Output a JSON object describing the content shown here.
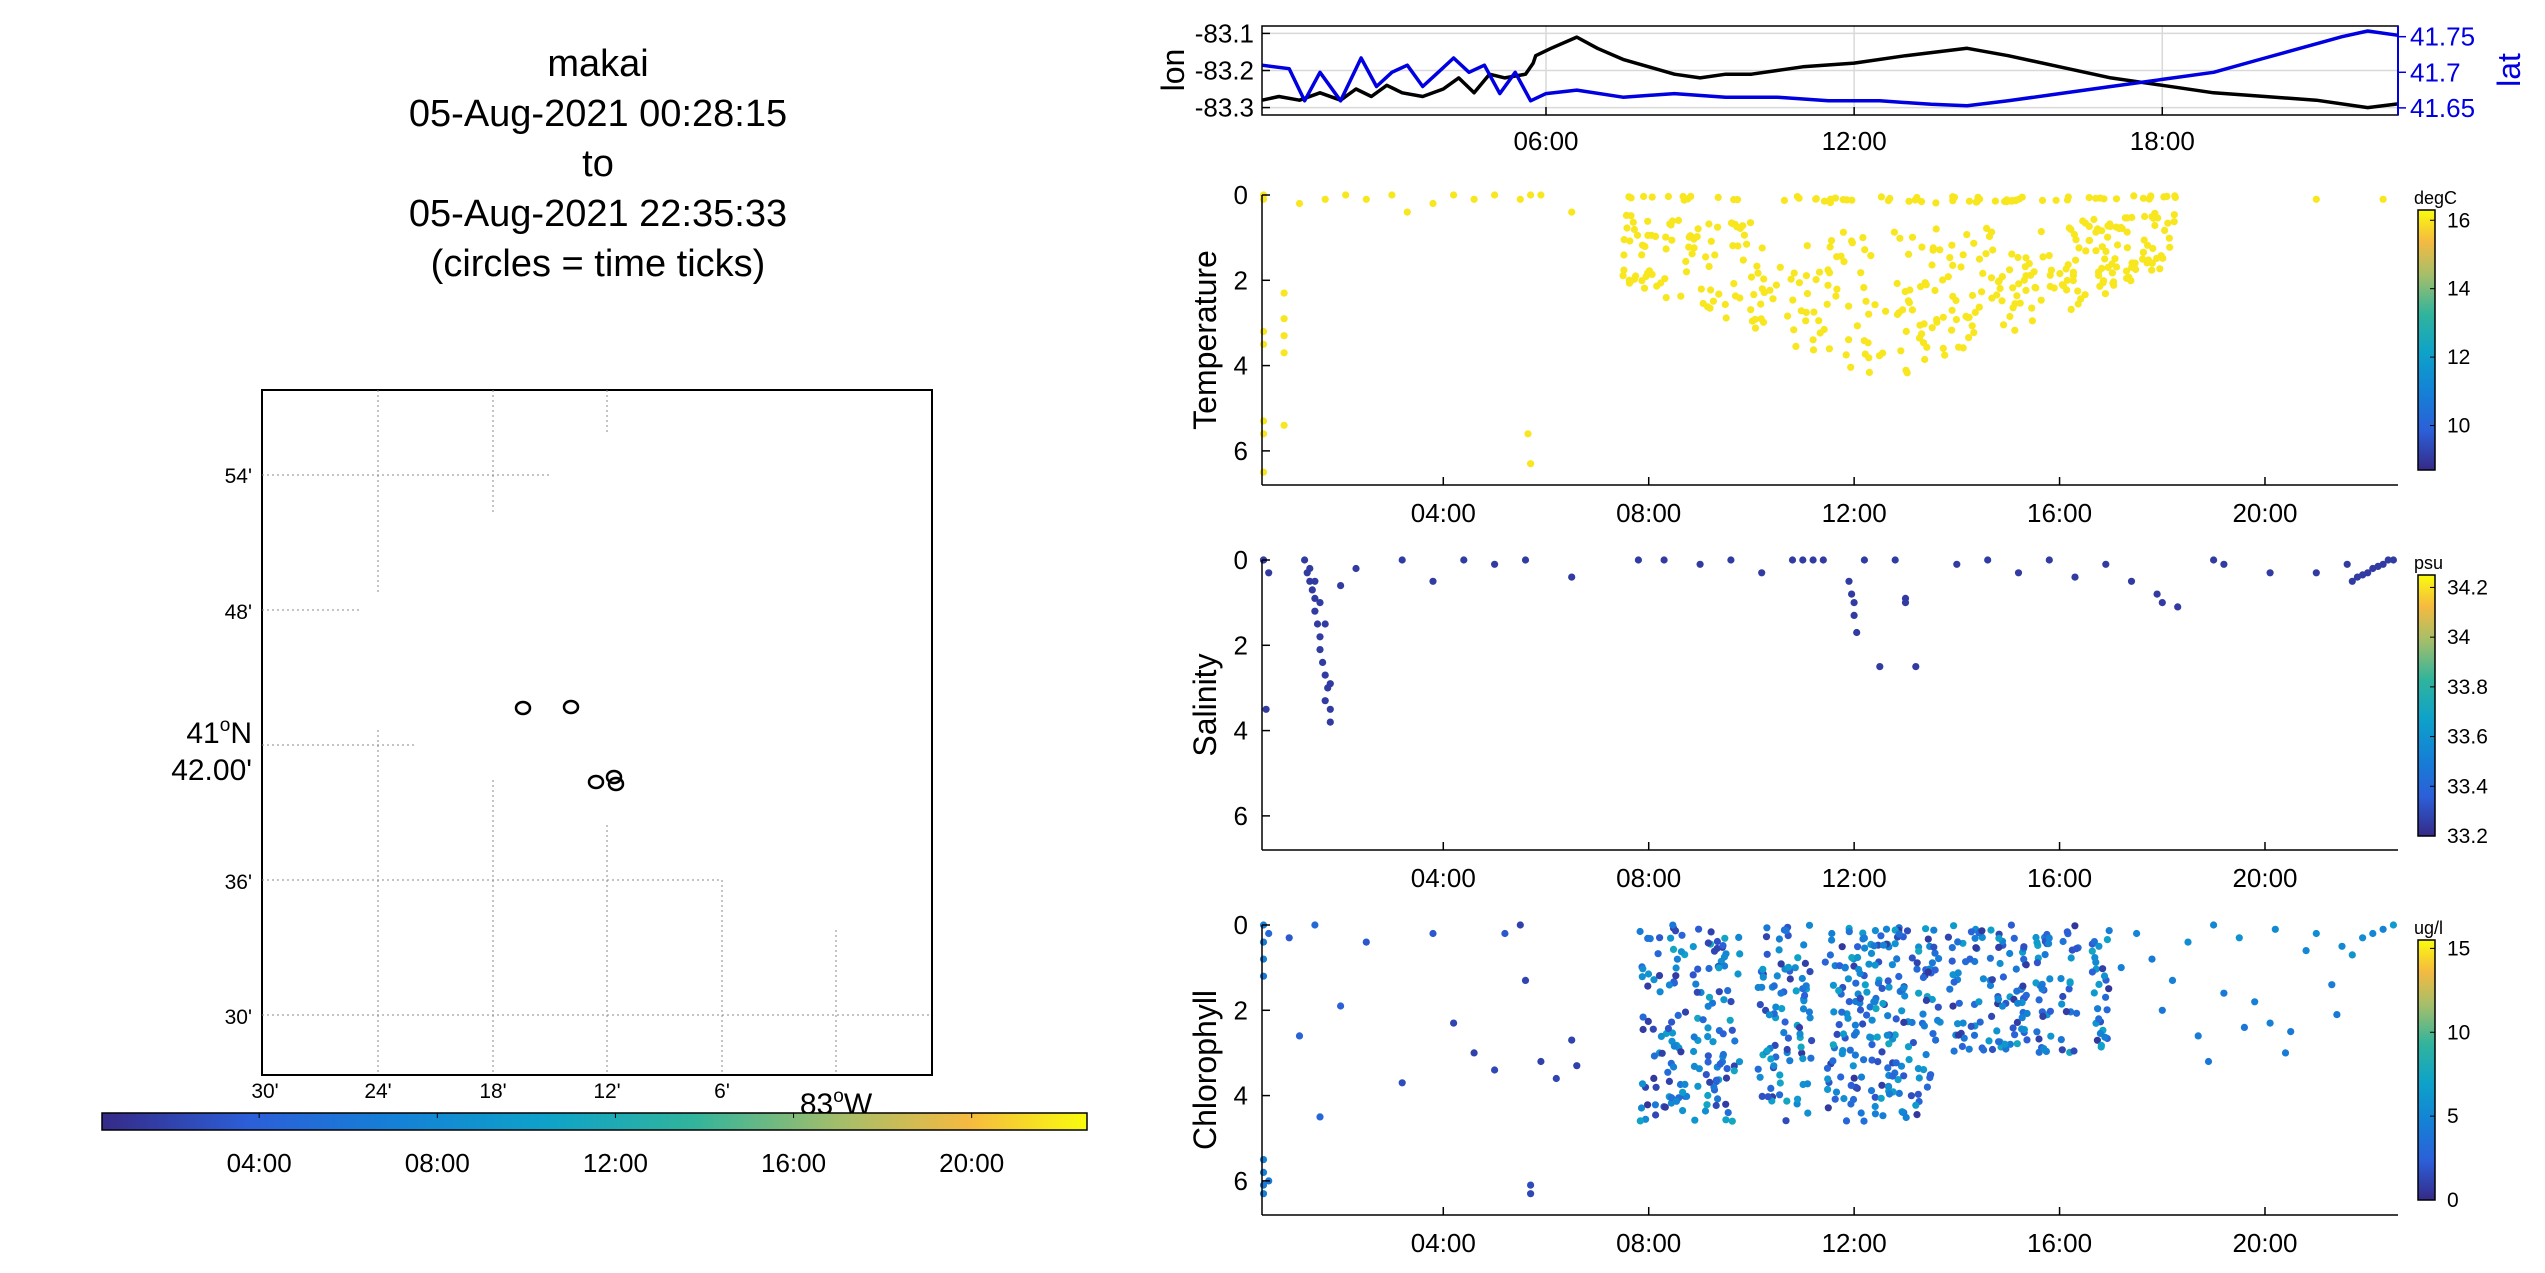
{
  "title": {
    "lines": [
      "makai",
      "05-Aug-2021 00:28:15",
      "to",
      "05-Aug-2021 22:35:33",
      "(circles = time ticks)"
    ]
  },
  "map": {
    "lat_ticks": [
      "54'",
      "48'",
      "42.00'",
      "36'",
      "30'"
    ],
    "lat_degree_label": "41",
    "lat_degree_suffix": "N",
    "lon_ticks": [
      "30'",
      "24'",
      "18'",
      "12'",
      "6'"
    ],
    "lon_degree_label": "83",
    "lon_degree_suffix": "W",
    "circle_marker_style": "black-ring",
    "time_colorbar": {
      "colormap": "parula",
      "ticks": [
        "04:00",
        "08:00",
        "12:00",
        "16:00",
        "20:00"
      ],
      "hours": [
        4,
        8,
        12,
        16,
        20
      ],
      "range_hours": [
        0.47,
        22.59
      ]
    }
  },
  "chart_data": [
    {
      "type": "line",
      "panel": "position",
      "x_ticks": [
        "06:00",
        "12:00",
        "18:00"
      ],
      "x_tick_hours": [
        6,
        12,
        18
      ],
      "xlim_hours": [
        0.47,
        22.59
      ],
      "ylabel": "lon",
      "ylim": [
        -83.32,
        -83.08
      ],
      "y_ticks": [
        "-83.1",
        "-83.2",
        "-83.3"
      ],
      "y_tick_values": [
        -83.1,
        -83.2,
        -83.3
      ],
      "y2label": "lat",
      "y2lim": [
        41.64,
        41.765
      ],
      "y2_ticks": [
        "41.75",
        "41.7",
        "41.65"
      ],
      "y2_tick_values": [
        41.75,
        41.7,
        41.65
      ],
      "grid": true,
      "series": [
        {
          "name": "lon",
          "color": "#000000",
          "axis": "left",
          "x_hours": [
            0.47,
            0.8,
            1.2,
            1.6,
            2.0,
            2.3,
            2.6,
            2.9,
            3.2,
            3.6,
            4.0,
            4.3,
            4.6,
            4.9,
            5.2,
            5.6,
            5.75,
            5.8,
            6.1,
            6.6,
            7.0,
            7.5,
            8.0,
            8.5,
            9.0,
            9.5,
            10.0,
            10.5,
            11.0,
            12.0,
            13.0,
            14.2,
            15.0,
            16.0,
            17.0,
            18.0,
            19.0,
            20.0,
            21.0,
            22.0,
            22.59
          ],
          "values": [
            -83.28,
            -83.27,
            -83.28,
            -83.26,
            -83.28,
            -83.25,
            -83.27,
            -83.24,
            -83.26,
            -83.27,
            -83.25,
            -83.22,
            -83.26,
            -83.21,
            -83.22,
            -83.21,
            -83.18,
            -83.16,
            -83.14,
            -83.11,
            -83.14,
            -83.17,
            -83.19,
            -83.21,
            -83.22,
            -83.21,
            -83.21,
            -83.2,
            -83.19,
            -83.18,
            -83.16,
            -83.14,
            -83.16,
            -83.19,
            -83.22,
            -83.24,
            -83.26,
            -83.27,
            -83.28,
            -83.3,
            -83.29
          ]
        },
        {
          "name": "lat",
          "color": "#0000e0",
          "axis": "right",
          "x_hours": [
            0.47,
            1.0,
            1.3,
            1.6,
            2.0,
            2.4,
            2.7,
            3.0,
            3.3,
            3.6,
            3.9,
            4.2,
            4.5,
            4.8,
            5.1,
            5.4,
            5.7,
            6.0,
            6.6,
            7.5,
            8.5,
            9.5,
            10.5,
            11.5,
            12.5,
            13.5,
            14.2,
            15.0,
            16.0,
            17.0,
            18.0,
            19.0,
            20.0,
            21.0,
            21.5,
            22.0,
            22.59
          ],
          "values": [
            41.71,
            41.705,
            41.66,
            41.7,
            41.66,
            41.72,
            41.68,
            41.7,
            41.71,
            41.68,
            41.7,
            41.72,
            41.7,
            41.71,
            41.67,
            41.7,
            41.66,
            41.67,
            41.675,
            41.665,
            41.67,
            41.665,
            41.665,
            41.66,
            41.66,
            41.655,
            41.653,
            41.66,
            41.67,
            41.68,
            41.69,
            41.7,
            41.72,
            41.74,
            41.75,
            41.758,
            41.752
          ]
        }
      ]
    },
    {
      "type": "scatter",
      "panel": "temperature",
      "ylabel": "Temperature",
      "units": "degC",
      "x_ticks": [
        "04:00",
        "08:00",
        "12:00",
        "16:00",
        "20:00"
      ],
      "x_tick_hours": [
        4,
        8,
        12,
        16,
        20
      ],
      "xlim_hours": [
        0.47,
        22.59
      ],
      "ylim": [
        0,
        6.8
      ],
      "y_ticks": [
        "0",
        "2",
        "4",
        "6"
      ],
      "y_tick_values": [
        0,
        2,
        4,
        6
      ],
      "y_reversed": true,
      "colorbar": {
        "ticks": [
          "16",
          "14",
          "12",
          "10"
        ],
        "tick_values": [
          16,
          14,
          12,
          10
        ],
        "range": [
          8.7,
          16.3
        ],
        "colormap": "parula"
      },
      "point_color_value": 16,
      "groups": [
        {
          "x": [
            0.5,
            0.5,
            0.5,
            0.5,
            0.5,
            0.5,
            0.9,
            0.9,
            0.9,
            0.9,
            0.9,
            0.5,
            1.2,
            1.7,
            2.1,
            2.5,
            3.0,
            3.3,
            3.8,
            4.2,
            4.6,
            5.0,
            5.5,
            5.7,
            5.9,
            5.65,
            5.7,
            6.5,
            21.0,
            22.3
          ],
          "y": [
            0.0,
            3.2,
            3.5,
            5.3,
            5.6,
            6.5,
            2.3,
            2.9,
            3.3,
            3.7,
            5.4,
            0.1,
            0.2,
            0.1,
            0.0,
            0.1,
            0.0,
            0.4,
            0.2,
            0.0,
            0.1,
            0.0,
            0.1,
            0.0,
            0.0,
            5.6,
            6.3,
            0.4,
            0.1,
            0.1
          ]
        },
        {
          "rule": "cluster",
          "count": 440,
          "hours": [
            7.5,
            18.3
          ],
          "depth": [
            0.0,
            4.6
          ],
          "center_hour": 12.6,
          "seed": 7
        }
      ]
    },
    {
      "type": "scatter",
      "panel": "salinity",
      "ylabel": "Salinity",
      "units": "psu",
      "x_ticks": [
        "04:00",
        "08:00",
        "12:00",
        "16:00",
        "20:00"
      ],
      "x_tick_hours": [
        4,
        8,
        12,
        16,
        20
      ],
      "xlim_hours": [
        0.47,
        22.59
      ],
      "ylim": [
        0,
        6.8
      ],
      "y_ticks": [
        "0",
        "2",
        "4",
        "6"
      ],
      "y_tick_values": [
        0,
        2,
        4,
        6
      ],
      "y_reversed": true,
      "colorbar": {
        "ticks": [
          "34.2",
          "34",
          "33.8",
          "33.6",
          "33.4",
          "33.2"
        ],
        "tick_values": [
          34.2,
          34.0,
          33.8,
          33.6,
          33.4,
          33.2
        ],
        "range": [
          33.2,
          34.25
        ],
        "colormap": "parula"
      },
      "point_color_value": 33.25,
      "groups": [
        {
          "x": [
            0.5,
            0.6,
            0.55,
            0.5,
            1.3,
            1.35,
            1.4,
            1.45,
            1.5,
            1.5,
            1.55,
            1.6,
            1.6,
            1.65,
            1.7,
            1.75,
            1.8,
            1.4,
            1.5,
            1.6,
            1.7,
            1.7,
            1.8,
            1.8,
            2.0,
            2.3,
            3.2,
            3.8,
            4.4,
            5.0,
            5.6,
            6.5,
            7.8,
            8.3,
            9.0,
            9.6,
            10.2,
            10.8,
            11.0,
            11.2,
            11.4,
            11.9,
            11.95,
            12.0,
            12.0,
            12.05,
            12.2,
            12.5,
            12.8,
            13.0,
            13.0,
            13.2,
            14.0,
            14.6,
            15.2,
            15.8,
            16.3,
            16.9,
            17.4,
            17.9,
            18.0,
            18.3,
            19.0,
            19.2,
            20.1,
            21.0,
            21.6,
            21.7,
            21.8,
            21.9,
            22.0,
            22.1,
            22.2,
            22.3,
            22.4,
            22.5
          ],
          "y": [
            0.0,
            0.3,
            3.5,
            0.0,
            0.0,
            0.3,
            0.5,
            0.7,
            0.9,
            1.2,
            1.5,
            1.8,
            2.1,
            2.4,
            2.7,
            3.0,
            3.5,
            0.2,
            0.5,
            1.0,
            1.5,
            3.3,
            3.8,
            2.9,
            0.6,
            0.2,
            0.0,
            0.5,
            0.0,
            0.1,
            0.0,
            0.4,
            0.0,
            0.0,
            0.1,
            0.0,
            0.3,
            0.0,
            0.0,
            0.0,
            0.0,
            0.5,
            0.8,
            1.0,
            1.3,
            1.7,
            0.0,
            2.5,
            0.0,
            1.0,
            0.9,
            2.5,
            0.1,
            0.0,
            0.3,
            0.0,
            0.4,
            0.1,
            0.5,
            0.8,
            1.0,
            1.1,
            0.0,
            0.1,
            0.3,
            0.3,
            0.1,
            0.5,
            0.4,
            0.35,
            0.3,
            0.2,
            0.15,
            0.1,
            0.0,
            0.0
          ]
        }
      ]
    },
    {
      "type": "scatter",
      "panel": "chlorophyll",
      "ylabel": "Chlorophyll",
      "units": "ug/l",
      "x_ticks": [
        "04:00",
        "08:00",
        "12:00",
        "16:00",
        "20:00"
      ],
      "x_tick_hours": [
        4,
        8,
        12,
        16,
        20
      ],
      "xlim_hours": [
        0.47,
        22.59
      ],
      "ylim": [
        0,
        6.8
      ],
      "y_ticks": [
        "0",
        "2",
        "4",
        "6"
      ],
      "y_tick_values": [
        0,
        2,
        4,
        6
      ],
      "y_reversed": true,
      "colorbar": {
        "ticks": [
          "15",
          "10",
          "5",
          "0"
        ],
        "tick_values": [
          15,
          10,
          5,
          0
        ],
        "range": [
          0,
          15.5
        ],
        "colormap": "parula"
      },
      "groups": [
        {
          "x": [
            0.5,
            0.5,
            0.5,
            0.5,
            0.5,
            0.5,
            0.5,
            0.5,
            0.6,
            0.6,
            1.0,
            1.2,
            1.5,
            1.6,
            2.0,
            2.5,
            3.2,
            3.8,
            4.2,
            4.6,
            5.0,
            5.2,
            5.5,
            5.6,
            5.7,
            5.7,
            5.9,
            6.2,
            6.5,
            6.6
          ],
          "y": [
            0.0,
            0.4,
            0.8,
            1.2,
            5.5,
            5.8,
            6.1,
            6.3,
            0.2,
            6.0,
            0.3,
            2.6,
            0.0,
            4.5,
            1.9,
            0.4,
            3.7,
            0.2,
            2.3,
            3.0,
            3.4,
            0.2,
            0.0,
            1.3,
            6.1,
            6.3,
            3.2,
            3.6,
            2.7,
            3.3
          ],
          "v": [
            4.5,
            4.2,
            4.6,
            4.0,
            4.8,
            4.5,
            4.3,
            4.6,
            3.0,
            4.0,
            2.0,
            2.5,
            3.0,
            2.8,
            2.4,
            2.0,
            1.5,
            2.0,
            1.2,
            1.0,
            1.3,
            2.0,
            1.0,
            1.2,
            1.5,
            1.3,
            1.0,
            1.2,
            1.1,
            1.0
          ]
        },
        {
          "rule": "columns",
          "count": 640,
          "hours": [
            7.6,
            16.9
          ],
          "depth": [
            0.0,
            4.6
          ],
          "seed": 11,
          "value_range": [
            0.5,
            7.5
          ]
        },
        {
          "x": [
            17.2,
            17.5,
            17.8,
            18.0,
            18.2,
            18.5,
            18.7,
            19.0,
            19.2,
            19.5,
            19.8,
            20.2,
            20.5,
            20.8,
            21.0,
            21.3,
            21.5,
            21.7,
            21.9,
            22.1,
            22.3,
            22.5,
            19.6,
            20.4,
            21.4,
            18.9,
            20.1
          ],
          "y": [
            1.0,
            0.2,
            0.8,
            2.0,
            1.3,
            0.4,
            2.6,
            0.0,
            1.6,
            0.3,
            1.8,
            0.1,
            2.5,
            0.6,
            0.2,
            1.4,
            0.5,
            0.7,
            0.3,
            0.2,
            0.1,
            0.0,
            2.4,
            3.0,
            2.1,
            3.2,
            2.3
          ],
          "v": [
            4.5,
            5.0,
            4.2,
            4.0,
            4.6,
            5.5,
            4.3,
            5.0,
            4.2,
            5.8,
            4.5,
            5.2,
            4.2,
            5.0,
            5.5,
            4.4,
            5.2,
            6.0,
            5.5,
            5.0,
            4.8,
            6.5,
            4.0,
            4.3,
            4.2,
            4.0,
            4.5
          ]
        }
      ]
    }
  ]
}
